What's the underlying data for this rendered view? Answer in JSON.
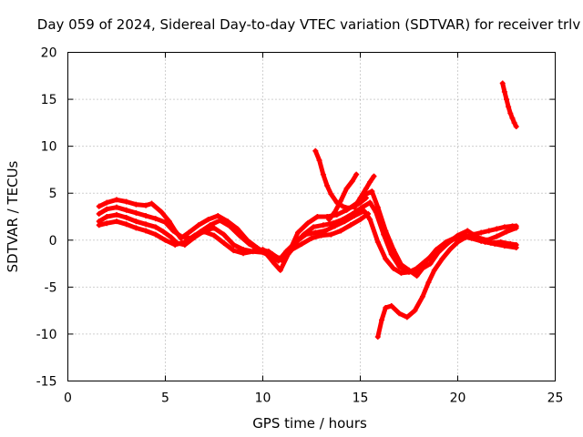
{
  "chart_data": {
    "type": "scatter",
    "title": "Day 059 of 2024, Sidereal Day-to-day VTEC variation (SDTVAR) for receiver trlv",
    "xlabel": "GPS time / hours",
    "ylabel": "SDTVAR / TECUs",
    "xlim": [
      0,
      25
    ],
    "ylim": [
      -15,
      20
    ],
    "x_ticks": [
      "0",
      "5",
      "10",
      "15",
      "20",
      "25"
    ],
    "y_ticks": [
      "-15",
      "-10",
      "-5",
      "0",
      "5",
      "10",
      "15",
      "20"
    ],
    "grid": true,
    "marker": "plus",
    "color": "#ff0000",
    "series": [
      {
        "x": [
          1.6,
          2.0,
          2.5,
          3.0,
          3.5,
          4.0,
          4.3,
          4.8,
          5.2,
          5.5,
          5.8,
          6.2,
          6.7,
          7.2,
          7.7,
          8.2,
          8.7,
          9.2,
          9.7,
          10.2,
          10.6,
          10.9,
          11.3,
          11.8,
          12.3,
          12.8,
          13.3,
          13.8,
          14.3,
          14.8,
          15.3,
          15.6,
          15.9,
          16.3,
          16.7,
          17.1,
          17.5,
          17.9,
          18.2,
          18.6,
          19.0,
          19.5,
          20.0,
          20.5,
          21.0,
          21.5,
          22.0,
          22.5,
          23.0
        ],
        "y": [
          3.6,
          4.0,
          4.3,
          4.1,
          3.8,
          3.7,
          3.9,
          3.0,
          2.0,
          1.0,
          0.2,
          0.8,
          1.6,
          2.2,
          2.6,
          2.0,
          1.2,
          0.0,
          -0.8,
          -1.5,
          -2.5,
          -3.2,
          -1.5,
          0.8,
          1.8,
          2.5,
          2.5,
          2.7,
          3.2,
          3.9,
          4.9,
          5.2,
          3.5,
          1.0,
          -1.0,
          -2.6,
          -3.2,
          -3.8,
          -3.0,
          -2.5,
          -1.3,
          -0.3,
          0.5,
          1.0,
          0.3,
          0.0,
          0.4,
          0.9,
          1.3
        ]
      },
      {
        "x": [
          1.6,
          2.0,
          2.5,
          3.0,
          3.5,
          4.0,
          4.5,
          5.0,
          5.4,
          5.8,
          6.3,
          6.8,
          7.3,
          7.8,
          8.3,
          8.8,
          9.3,
          9.8,
          10.3,
          10.7,
          11.1,
          11.6,
          12.1,
          12.6,
          13.1,
          13.6,
          14.1,
          14.6,
          15.1,
          15.5,
          15.8,
          16.2,
          16.6,
          17.0,
          17.4,
          17.8,
          18.1,
          18.5,
          18.9,
          19.4,
          19.9,
          20.4,
          20.9,
          21.4,
          21.9,
          22.4,
          23.0
        ],
        "y": [
          2.8,
          3.3,
          3.5,
          3.2,
          2.9,
          2.6,
          2.3,
          1.9,
          1.0,
          0.4,
          0.2,
          0.9,
          1.6,
          2.1,
          1.5,
          0.5,
          -0.4,
          -1.0,
          -1.2,
          -1.8,
          -2.0,
          -0.5,
          0.6,
          1.4,
          1.6,
          1.8,
          2.2,
          2.8,
          3.5,
          4.0,
          3.0,
          0.6,
          -1.5,
          -2.8,
          -3.3,
          -3.5,
          -2.8,
          -2.0,
          -1.0,
          -0.2,
          0.3,
          0.5,
          0.2,
          -0.2,
          -0.4,
          -0.6,
          -0.8
        ]
      },
      {
        "x": [
          1.6,
          2.0,
          2.5,
          3.0,
          3.5,
          4.0,
          4.5,
          4.9,
          5.3,
          5.6,
          6.0,
          6.5,
          7.0,
          7.5,
          8.0,
          8.5,
          9.0,
          9.5,
          10.0,
          10.4,
          10.8,
          11.2,
          11.7,
          12.2,
          12.7,
          13.2,
          13.7,
          14.2,
          14.7,
          15.2,
          15.5,
          15.9,
          16.3,
          16.7,
          17.1,
          17.5,
          17.9,
          18.3,
          18.7,
          19.2,
          19.7,
          20.2,
          20.7,
          21.2,
          21.7,
          22.2,
          22.7,
          23.0
        ],
        "y": [
          2.0,
          2.5,
          2.7,
          2.4,
          2.0,
          1.7,
          1.4,
          0.9,
          0.3,
          -0.3,
          -0.5,
          0.3,
          1.0,
          1.3,
          0.6,
          -0.5,
          -1.0,
          -1.2,
          -1.3,
          -1.7,
          -2.2,
          -1.2,
          -0.2,
          0.6,
          0.8,
          1.0,
          1.5,
          2.0,
          2.6,
          3.1,
          2.2,
          -0.2,
          -2.0,
          -3.0,
          -3.5,
          -3.4,
          -3.0,
          -2.3,
          -1.6,
          -0.8,
          0.0,
          0.4,
          0.2,
          -0.1,
          -0.3,
          -0.2,
          -0.4,
          -0.5
        ]
      },
      {
        "x": [
          1.6,
          2.0,
          2.5,
          3.0,
          3.5,
          4.0,
          4.5,
          5.0,
          5.5,
          6.0,
          6.5,
          7.0,
          7.5,
          8.0,
          8.5,
          9.0,
          9.5,
          10.0,
          10.5,
          11.0,
          11.5,
          12.0,
          12.5,
          13.0,
          13.5,
          14.0,
          14.5,
          15.0,
          15.4
        ],
        "y": [
          1.6,
          1.8,
          2.0,
          1.7,
          1.3,
          1.0,
          0.6,
          0.0,
          -0.5,
          -0.2,
          0.5,
          0.9,
          0.5,
          -0.3,
          -1.1,
          -1.4,
          -1.2,
          -1.0,
          -1.5,
          -2.2,
          -1.0,
          -0.4,
          0.2,
          0.5,
          0.6,
          1.0,
          1.6,
          2.2,
          2.8
        ]
      },
      {
        "x": [
          12.7,
          12.9,
          13.1,
          13.3,
          13.5,
          13.8,
          14.1,
          14.4,
          14.7,
          15.0,
          15.3
        ],
        "y": [
          9.5,
          8.5,
          7.0,
          5.8,
          4.9,
          4.0,
          3.6,
          3.4,
          3.6,
          4.0,
          4.5
        ]
      },
      {
        "x": [
          13.4,
          13.7,
          14.0,
          14.3,
          14.6,
          14.8
        ],
        "y": [
          2.2,
          3.0,
          4.2,
          5.5,
          6.3,
          7.0
        ]
      },
      {
        "x": [
          14.7,
          15.0,
          15.3,
          15.5,
          15.7
        ],
        "y": [
          3.5,
          4.5,
          5.5,
          6.2,
          6.8
        ]
      },
      {
        "x": [
          15.9,
          16.1,
          16.3,
          16.6,
          17.0,
          17.4,
          17.8,
          18.2,
          18.5,
          18.8,
          19.2,
          19.6,
          20.0,
          20.4,
          20.8,
          21.2,
          21.6,
          22.0,
          22.4,
          22.8,
          23.0
        ],
        "y": [
          -10.3,
          -8.5,
          -7.2,
          -7.0,
          -7.8,
          -8.2,
          -7.5,
          -6.0,
          -4.5,
          -3.2,
          -2.0,
          -1.0,
          -0.2,
          0.3,
          0.6,
          0.8,
          1.0,
          1.2,
          1.4,
          1.5,
          1.5
        ]
      },
      {
        "x": [
          22.3,
          22.4,
          22.5,
          22.6,
          22.7,
          22.8,
          22.9,
          23.0
        ],
        "y": [
          16.7,
          15.8,
          15.0,
          14.2,
          13.5,
          13.0,
          12.5,
          12.1
        ]
      }
    ]
  }
}
